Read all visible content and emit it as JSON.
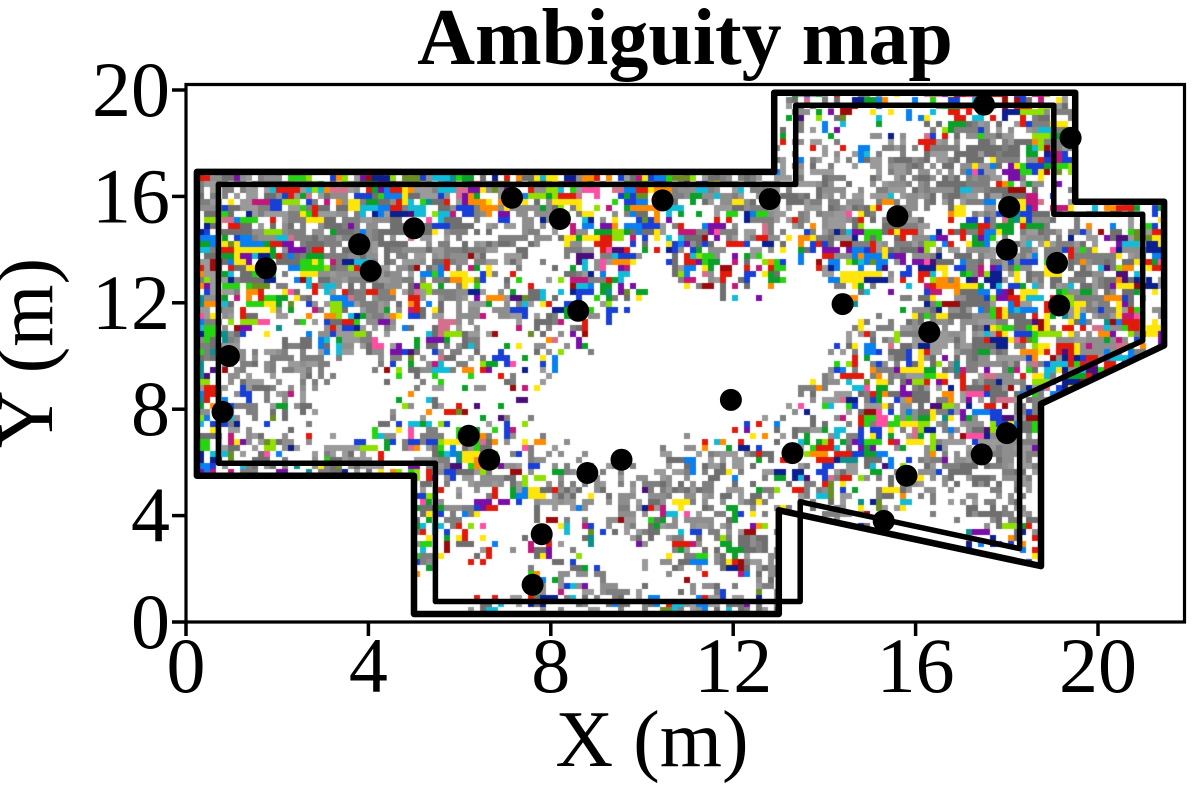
{
  "title": "Ambiguity map",
  "chart_data": {
    "type": "heatmap",
    "title": "Ambiguity map",
    "xlabel": "X (m)",
    "ylabel": "Y (m)",
    "x_ticks": [
      0,
      4,
      8,
      12,
      16,
      20
    ],
    "y_ticks": [
      0,
      4,
      8,
      12,
      16,
      20
    ],
    "xlim": [
      0,
      21.9
    ],
    "ylim": [
      0,
      20.2
    ],
    "grid": false,
    "legend": false,
    "description": "Ambiguity map of an indoor environment: random multi-colored cells (ambiguous localization hypotheses) fill a polygonal floor plan outlined by a double black wall; black dots are landmark positions.",
    "boundary_color": "#000000",
    "landmark_color": "#000000",
    "boundary_polygon_m": [
      [
        0.24,
        16.92
      ],
      [
        12.9,
        16.92
      ],
      [
        12.9,
        19.9
      ],
      [
        19.5,
        19.9
      ],
      [
        19.5,
        15.8
      ],
      [
        21.45,
        15.8
      ],
      [
        21.45,
        10.4
      ],
      [
        18.75,
        8.2
      ],
      [
        18.75,
        2.1
      ],
      [
        13.0,
        4.2
      ],
      [
        13.0,
        0.3
      ],
      [
        5.0,
        0.3
      ],
      [
        5.0,
        5.5
      ],
      [
        0.24,
        5.5
      ]
    ],
    "inner_wall_polygon_m": [
      [
        0.71,
        16.45
      ],
      [
        13.37,
        16.45
      ],
      [
        13.37,
        19.43
      ],
      [
        19.03,
        19.43
      ],
      [
        19.03,
        15.33
      ],
      [
        20.98,
        15.33
      ],
      [
        20.98,
        10.58
      ],
      [
        18.28,
        8.44
      ],
      [
        18.28,
        2.76
      ],
      [
        13.47,
        4.52
      ],
      [
        13.47,
        0.77
      ],
      [
        5.47,
        0.77
      ],
      [
        5.47,
        5.97
      ],
      [
        0.71,
        5.97
      ]
    ],
    "landmarks_m": [
      [
        1.75,
        13.3
      ],
      [
        3.8,
        14.2
      ],
      [
        4.05,
        13.2
      ],
      [
        5.0,
        14.8
      ],
      [
        7.15,
        15.95
      ],
      [
        8.2,
        15.15
      ],
      [
        8.6,
        11.7
      ],
      [
        0.94,
        10.0
      ],
      [
        0.8,
        7.9
      ],
      [
        6.2,
        7.0
      ],
      [
        6.65,
        6.1
      ],
      [
        8.8,
        5.6
      ],
      [
        9.55,
        6.1
      ],
      [
        13.3,
        6.35
      ],
      [
        7.8,
        3.3
      ],
      [
        7.6,
        1.4
      ],
      [
        17.5,
        19.45
      ],
      [
        19.4,
        18.2
      ],
      [
        12.8,
        15.9
      ],
      [
        18.05,
        15.6
      ],
      [
        15.6,
        15.25
      ],
      [
        18.0,
        14.0
      ],
      [
        19.1,
        13.5
      ],
      [
        14.4,
        11.95
      ],
      [
        19.15,
        11.9
      ],
      [
        16.3,
        10.9
      ],
      [
        10.45,
        15.85
      ],
      [
        18.0,
        7.1
      ],
      [
        17.45,
        6.3
      ],
      [
        15.8,
        5.5
      ],
      [
        15.3,
        3.8
      ],
      [
        11.95,
        8.35
      ]
    ],
    "noise_palette": [
      [
        "#e11a0c",
        0.115
      ],
      [
        "#9b0b0b",
        0.03
      ],
      [
        "#0aa02a",
        0.09
      ],
      [
        "#27d411",
        0.06
      ],
      [
        "#8fe000",
        0.05
      ],
      [
        "#1940d6",
        0.1
      ],
      [
        "#0a7ff0",
        0.05
      ],
      [
        "#0b1f8f",
        0.05
      ],
      [
        "#ffe60a",
        0.105
      ],
      [
        "#ff8c00",
        0.05
      ],
      [
        "#12bcd9",
        0.06
      ],
      [
        "#0b8f8f",
        0.025
      ],
      [
        "#7a0fa8",
        0.06
      ],
      [
        "#c2187c",
        0.035
      ],
      [
        "#d4708b",
        0.02
      ],
      [
        "#4b0f7a",
        0.02
      ],
      [
        "#ff4fa3",
        0.015
      ],
      [
        "#6b8e23",
        0.015
      ]
    ],
    "gray_shades": [
      "#7f7f7f",
      "#8e8e8e",
      "#6f6f6f",
      "#9a9a9a"
    ],
    "texture": {
      "base_white": 0.16,
      "base_gray": 0.2,
      "white_blobs": [
        [
          10.8,
          9.2,
          3.4,
          0.9
        ],
        [
          12.6,
          11.3,
          2.2,
          0.5
        ],
        [
          8.8,
          7.8,
          2.2,
          0.55
        ],
        [
          15.9,
          1.9,
          2.8,
          0.95
        ],
        [
          2.6,
          6.9,
          2.2,
          0.5
        ],
        [
          14.4,
          18.6,
          2.0,
          0.55
        ],
        [
          6.0,
          2.2,
          1.6,
          0.4
        ],
        [
          9.0,
          0.5,
          3.0,
          0.5
        ],
        [
          4.0,
          8.7,
          1.6,
          0.35
        ]
      ],
      "gray_blobs": [
        [
          4.2,
          13.9,
          1.3,
          0.8
        ],
        [
          7.5,
          14.3,
          1.1,
          0.75
        ],
        [
          14.2,
          16.1,
          1.6,
          0.8
        ],
        [
          9.3,
          6.2,
          1.8,
          0.85
        ],
        [
          16.5,
          10.6,
          1.4,
          0.7
        ],
        [
          17.3,
          5.8,
          1.5,
          0.8
        ],
        [
          2.0,
          9.2,
          1.7,
          0.6
        ],
        [
          0.8,
          16.2,
          1.0,
          0.7
        ],
        [
          14.2,
          1.6,
          2.6,
          0.9
        ],
        [
          18.9,
          5.4,
          1.2,
          0.65
        ],
        [
          12.4,
          16.4,
          1.2,
          0.5
        ],
        [
          16.9,
          16.9,
          1.4,
          0.55
        ],
        [
          6.2,
          11.3,
          1.4,
          0.45
        ],
        [
          11.5,
          5.3,
          1.3,
          0.45
        ],
        [
          2.6,
          15.0,
          1.0,
          0.5
        ],
        [
          19.5,
          14.0,
          1.0,
          0.5
        ],
        [
          10.0,
          2.5,
          1.5,
          0.5
        ],
        [
          13.4,
          8.6,
          1.2,
          0.45
        ]
      ]
    }
  }
}
